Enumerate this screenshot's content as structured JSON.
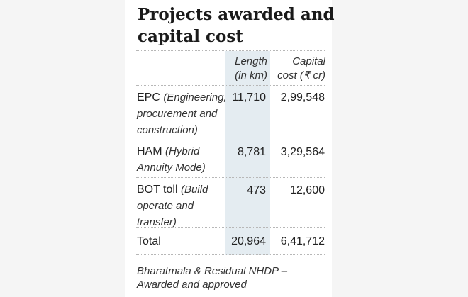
{
  "chart_data": {
    "type": "table",
    "title": "Projects awarded and capital cost",
    "columns": [
      {
        "label": "Length (in km)"
      },
      {
        "label": "Capital cost (₹ cr)"
      }
    ],
    "rows": [
      {
        "abbr": "EPC",
        "desc": "(Engineering, procurement and construction)",
        "length": "11,710",
        "cost": "2,99,548"
      },
      {
        "abbr": "HAM",
        "desc": "(Hybrid Annuity Mode)",
        "length": "8,781",
        "cost": "3,29,564"
      },
      {
        "abbr": "BOT toll",
        "desc": "(Build operate and transfer)",
        "length": "473",
        "cost": "12,600"
      },
      {
        "abbr": "Total",
        "desc": "",
        "length": "20,964",
        "cost": "6,41,712"
      }
    ],
    "footnote": "Bharatmala & Residual NHDP – Awarded and approved"
  }
}
